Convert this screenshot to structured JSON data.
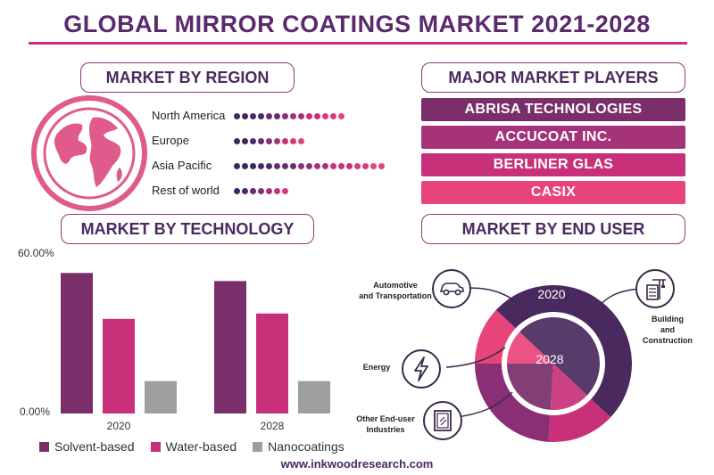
{
  "title": "GLOBAL MIRROR COATINGS MARKET 2021-2028",
  "sections": {
    "region": "MARKET BY REGION",
    "players": "MAJOR MARKET PLAYERS",
    "technology": "MARKET BY TECHNOLOGY",
    "end_user": "MARKET BY END USER"
  },
  "regions": [
    {
      "name": "North America",
      "dots": 14
    },
    {
      "name": "Europe",
      "dots": 9
    },
    {
      "name": "Asia Pacific",
      "dots": 19
    },
    {
      "name": "Rest of world",
      "dots": 7
    }
  ],
  "players": [
    "ABRISA TECHNOLOGIES",
    "ACCUCOAT INC.",
    "BERLINER GLAS",
    "CASIX"
  ],
  "colors": {
    "purple": "#7a2e6a",
    "magenta": "#c8317a",
    "pink": "#e8447a",
    "gray": "#9e9e9e",
    "dark_purple": "#4a2a5e"
  },
  "chart_data": [
    {
      "type": "bar",
      "categories": [
        "2020",
        "2028"
      ],
      "series": [
        {
          "name": "Solvent-based",
          "values": [
            52,
            49
          ]
        },
        {
          "name": "Water-based",
          "values": [
            35,
            37
          ]
        },
        {
          "name": "Nanocoatings",
          "values": [
            12,
            12
          ]
        }
      ],
      "ylim": [
        0,
        60
      ],
      "ytick_labels": [
        "0.00%",
        "60.00%"
      ],
      "legend_placement": "bottom",
      "grid": false
    },
    {
      "type": "pie",
      "rings": [
        "2020",
        "2028"
      ],
      "segments": [
        "Automotive and Transportation",
        "Building and Construction",
        "Energy",
        "Other End-user Industries"
      ],
      "values": [
        12,
        50,
        14,
        24
      ]
    }
  ],
  "end_user_labels": {
    "automotive": "Automotive\nand Transportation",
    "building": "Building\nand\nConstruction",
    "energy": "Energy",
    "other": "Other End-user\nIndustries"
  },
  "icons": {
    "globe": "globe-icon",
    "car": "car-icon",
    "building": "building-crane-icon",
    "energy": "lightning-icon",
    "other": "window-icon"
  },
  "footer": "www.inkwoodresearch.com"
}
